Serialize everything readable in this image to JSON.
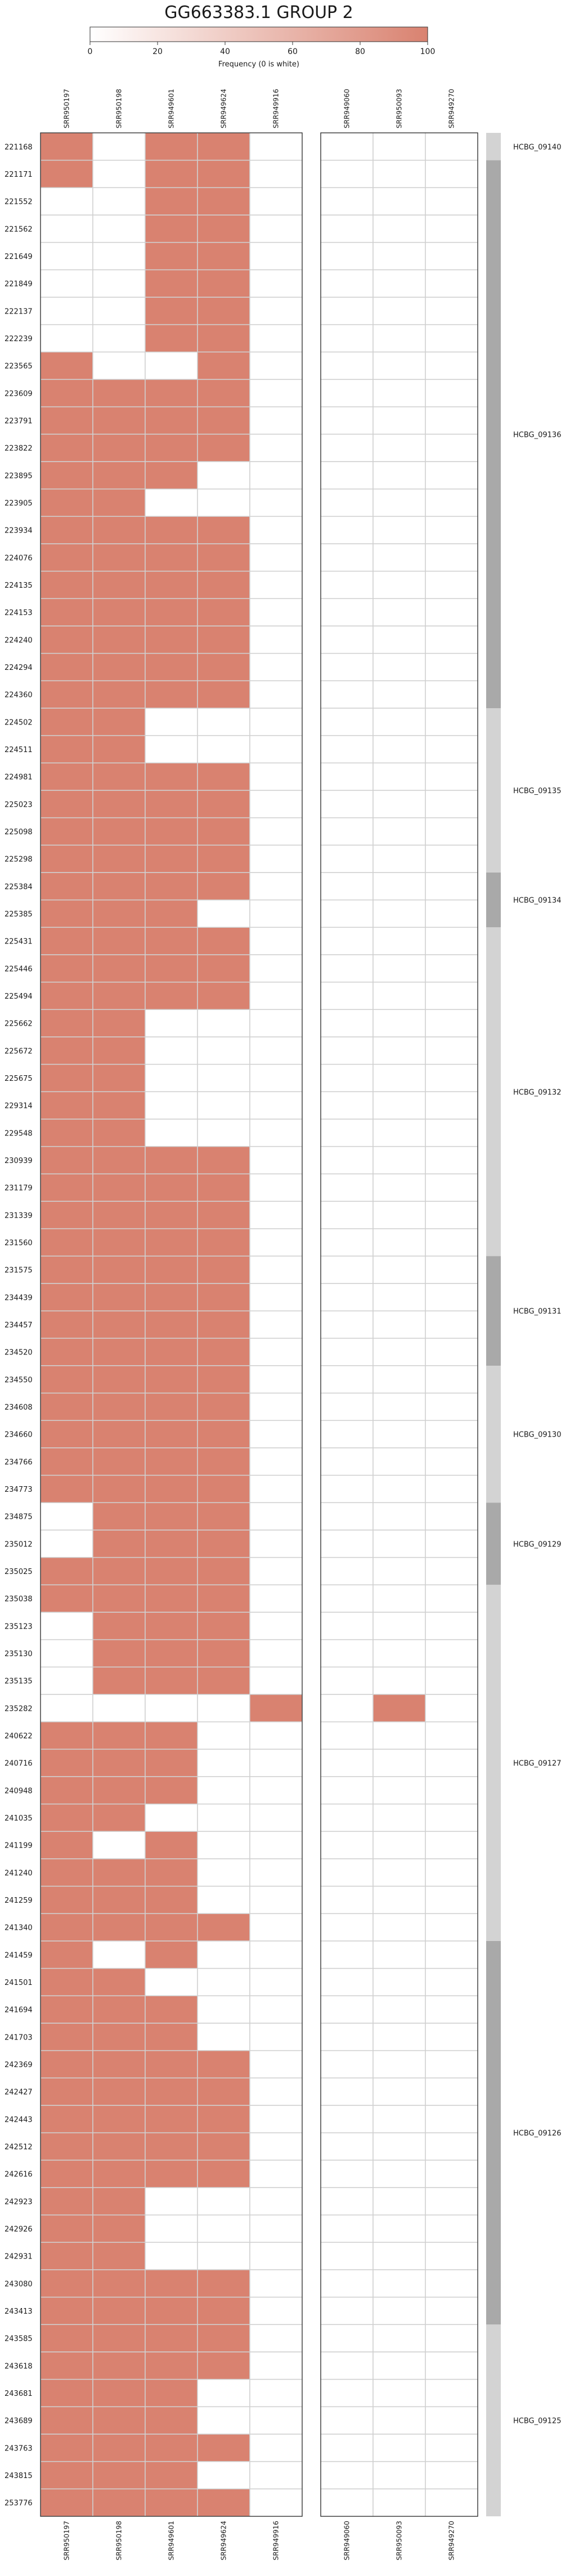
{
  "chart_data": {
    "type": "heatmap",
    "title": "GG663383.1 GROUP 2",
    "colorbar": {
      "label": "Frequency (0 is white)",
      "min": 0,
      "max": 100,
      "ticks": [
        0,
        20,
        40,
        60,
        80,
        100
      ],
      "color_low": "#ffffff",
      "color_high": "#d98270"
    },
    "cell_color": "#d98270",
    "panels": [
      {
        "columns": [
          "SRR950197",
          "SRR950198",
          "SRR949601",
          "SRR949624",
          "SRR949916"
        ]
      },
      {
        "columns": [
          "SRR949060",
          "SRR950093",
          "SRR949270"
        ]
      }
    ],
    "rows": [
      "221168",
      "221171",
      "221552",
      "221562",
      "221649",
      "221849",
      "222137",
      "222239",
      "223565",
      "223609",
      "223791",
      "223822",
      "223895",
      "223905",
      "223934",
      "224076",
      "224135",
      "224153",
      "224240",
      "224294",
      "224360",
      "224502",
      "224511",
      "224981",
      "225023",
      "225098",
      "225298",
      "225384",
      "225385",
      "225431",
      "225446",
      "225494",
      "225662",
      "225672",
      "225675",
      "229314",
      "229548",
      "230939",
      "231179",
      "231339",
      "231560",
      "231575",
      "234439",
      "234457",
      "234520",
      "234550",
      "234608",
      "234660",
      "234766",
      "234773",
      "234875",
      "235012",
      "235025",
      "235038",
      "235123",
      "235130",
      "235135",
      "235282",
      "240622",
      "240716",
      "240948",
      "241035",
      "241199",
      "241240",
      "241259",
      "241340",
      "241459",
      "241501",
      "241694",
      "241703",
      "242369",
      "242427",
      "242443",
      "242512",
      "242616",
      "242923",
      "242926",
      "242931",
      "243080",
      "243413",
      "243585",
      "243618",
      "243681",
      "243689",
      "243763",
      "243815",
      "253776"
    ],
    "values": [
      [
        100,
        0,
        100,
        100,
        0,
        0,
        0,
        0
      ],
      [
        100,
        0,
        100,
        100,
        0,
        0,
        0,
        0
      ],
      [
        0,
        0,
        100,
        100,
        0,
        0,
        0,
        0
      ],
      [
        0,
        0,
        100,
        100,
        0,
        0,
        0,
        0
      ],
      [
        0,
        0,
        100,
        100,
        0,
        0,
        0,
        0
      ],
      [
        0,
        0,
        100,
        100,
        0,
        0,
        0,
        0
      ],
      [
        0,
        0,
        100,
        100,
        0,
        0,
        0,
        0
      ],
      [
        0,
        0,
        100,
        100,
        0,
        0,
        0,
        0
      ],
      [
        100,
        0,
        0,
        100,
        0,
        0,
        0,
        0
      ],
      [
        100,
        100,
        100,
        100,
        0,
        0,
        0,
        0
      ],
      [
        100,
        100,
        100,
        100,
        0,
        0,
        0,
        0
      ],
      [
        100,
        100,
        100,
        100,
        0,
        0,
        0,
        0
      ],
      [
        100,
        100,
        100,
        0,
        0,
        0,
        0,
        0
      ],
      [
        100,
        100,
        0,
        0,
        0,
        0,
        0,
        0
      ],
      [
        100,
        100,
        100,
        100,
        0,
        0,
        0,
        0
      ],
      [
        100,
        100,
        100,
        100,
        0,
        0,
        0,
        0
      ],
      [
        100,
        100,
        100,
        100,
        0,
        0,
        0,
        0
      ],
      [
        100,
        100,
        100,
        100,
        0,
        0,
        0,
        0
      ],
      [
        100,
        100,
        100,
        100,
        0,
        0,
        0,
        0
      ],
      [
        100,
        100,
        100,
        100,
        0,
        0,
        0,
        0
      ],
      [
        100,
        100,
        100,
        100,
        0,
        0,
        0,
        0
      ],
      [
        100,
        100,
        0,
        0,
        0,
        0,
        0,
        0
      ],
      [
        100,
        100,
        0,
        0,
        0,
        0,
        0,
        0
      ],
      [
        100,
        100,
        100,
        100,
        0,
        0,
        0,
        0
      ],
      [
        100,
        100,
        100,
        100,
        0,
        0,
        0,
        0
      ],
      [
        100,
        100,
        100,
        100,
        0,
        0,
        0,
        0
      ],
      [
        100,
        100,
        100,
        100,
        0,
        0,
        0,
        0
      ],
      [
        100,
        100,
        100,
        100,
        0,
        0,
        0,
        0
      ],
      [
        100,
        100,
        100,
        0,
        0,
        0,
        0,
        0
      ],
      [
        100,
        100,
        100,
        100,
        0,
        0,
        0,
        0
      ],
      [
        100,
        100,
        100,
        100,
        0,
        0,
        0,
        0
      ],
      [
        100,
        100,
        100,
        100,
        0,
        0,
        0,
        0
      ],
      [
        100,
        100,
        0,
        0,
        0,
        0,
        0,
        0
      ],
      [
        100,
        100,
        0,
        0,
        0,
        0,
        0,
        0
      ],
      [
        100,
        100,
        0,
        0,
        0,
        0,
        0,
        0
      ],
      [
        100,
        100,
        0,
        0,
        0,
        0,
        0,
        0
      ],
      [
        100,
        100,
        0,
        0,
        0,
        0,
        0,
        0
      ],
      [
        100,
        100,
        100,
        100,
        0,
        0,
        0,
        0
      ],
      [
        100,
        100,
        100,
        100,
        0,
        0,
        0,
        0
      ],
      [
        100,
        100,
        100,
        100,
        0,
        0,
        0,
        0
      ],
      [
        100,
        100,
        100,
        100,
        0,
        0,
        0,
        0
      ],
      [
        100,
        100,
        100,
        100,
        0,
        0,
        0,
        0
      ],
      [
        100,
        100,
        100,
        100,
        0,
        0,
        0,
        0
      ],
      [
        100,
        100,
        100,
        100,
        0,
        0,
        0,
        0
      ],
      [
        100,
        100,
        100,
        100,
        0,
        0,
        0,
        0
      ],
      [
        100,
        100,
        100,
        100,
        0,
        0,
        0,
        0
      ],
      [
        100,
        100,
        100,
        100,
        0,
        0,
        0,
        0
      ],
      [
        100,
        100,
        100,
        100,
        0,
        0,
        0,
        0
      ],
      [
        100,
        100,
        100,
        100,
        0,
        0,
        0,
        0
      ],
      [
        100,
        100,
        100,
        100,
        0,
        0,
        0,
        0
      ],
      [
        0,
        100,
        100,
        100,
        0,
        0,
        0,
        0
      ],
      [
        0,
        100,
        100,
        100,
        0,
        0,
        0,
        0
      ],
      [
        100,
        100,
        100,
        100,
        0,
        0,
        0,
        0
      ],
      [
        100,
        100,
        100,
        100,
        0,
        0,
        0,
        0
      ],
      [
        0,
        100,
        100,
        100,
        0,
        0,
        0,
        0
      ],
      [
        0,
        100,
        100,
        100,
        0,
        0,
        0,
        0
      ],
      [
        0,
        100,
        100,
        100,
        0,
        0,
        0,
        0
      ],
      [
        0,
        0,
        0,
        0,
        100,
        0,
        100,
        0
      ],
      [
        100,
        100,
        100,
        0,
        0,
        0,
        0,
        0
      ],
      [
        100,
        100,
        100,
        0,
        0,
        0,
        0,
        0
      ],
      [
        100,
        100,
        100,
        0,
        0,
        0,
        0,
        0
      ],
      [
        100,
        100,
        0,
        0,
        0,
        0,
        0,
        0
      ],
      [
        100,
        0,
        100,
        0,
        0,
        0,
        0,
        0
      ],
      [
        100,
        100,
        100,
        0,
        0,
        0,
        0,
        0
      ],
      [
        100,
        100,
        100,
        0,
        0,
        0,
        0,
        0
      ],
      [
        100,
        100,
        100,
        100,
        0,
        0,
        0,
        0
      ],
      [
        100,
        0,
        100,
        0,
        0,
        0,
        0,
        0
      ],
      [
        100,
        100,
        0,
        0,
        0,
        0,
        0,
        0
      ],
      [
        100,
        100,
        100,
        0,
        0,
        0,
        0,
        0
      ],
      [
        100,
        100,
        100,
        0,
        0,
        0,
        0,
        0
      ],
      [
        100,
        100,
        100,
        100,
        0,
        0,
        0,
        0
      ],
      [
        100,
        100,
        100,
        100,
        0,
        0,
        0,
        0
      ],
      [
        100,
        100,
        100,
        100,
        0,
        0,
        0,
        0
      ],
      [
        100,
        100,
        100,
        100,
        0,
        0,
        0,
        0
      ],
      [
        100,
        100,
        100,
        100,
        0,
        0,
        0,
        0
      ],
      [
        100,
        100,
        0,
        0,
        0,
        0,
        0,
        0
      ],
      [
        100,
        100,
        0,
        0,
        0,
        0,
        0,
        0
      ],
      [
        100,
        100,
        0,
        0,
        0,
        0,
        0,
        0
      ],
      [
        100,
        100,
        100,
        100,
        0,
        0,
        0,
        0
      ],
      [
        100,
        100,
        100,
        100,
        0,
        0,
        0,
        0
      ],
      [
        100,
        100,
        100,
        100,
        0,
        0,
        0,
        0
      ],
      [
        100,
        100,
        100,
        100,
        0,
        0,
        0,
        0
      ],
      [
        100,
        100,
        100,
        0,
        0,
        0,
        0,
        0
      ],
      [
        100,
        100,
        100,
        0,
        0,
        0,
        0,
        0
      ],
      [
        100,
        100,
        100,
        100,
        0,
        0,
        0,
        0
      ],
      [
        100,
        100,
        100,
        0,
        0,
        0,
        0,
        0
      ],
      [
        100,
        100,
        100,
        100,
        0,
        0,
        0,
        0
      ]
    ],
    "groups": [
      {
        "label": "HCBG_09140",
        "first": 0,
        "last": 0,
        "shade": "#d3d3d3"
      },
      {
        "label": "HCBG_09136",
        "first": 1,
        "last": 20,
        "shade": "#a9a9a9"
      },
      {
        "label": "HCBG_09135",
        "first": 21,
        "last": 26,
        "shade": "#d3d3d3"
      },
      {
        "label": "HCBG_09134",
        "first": 27,
        "last": 28,
        "shade": "#a9a9a9"
      },
      {
        "label": "HCBG_09132",
        "first": 29,
        "last": 40,
        "shade": "#d3d3d3"
      },
      {
        "label": "HCBG_09131",
        "first": 41,
        "last": 44,
        "shade": "#a9a9a9"
      },
      {
        "label": "HCBG_09130",
        "first": 45,
        "last": 49,
        "shade": "#d3d3d3"
      },
      {
        "label": "HCBG_09129",
        "first": 50,
        "last": 52,
        "shade": "#a9a9a9"
      },
      {
        "label": "HCBG_09127",
        "first": 53,
        "last": 65,
        "shade": "#d3d3d3"
      },
      {
        "label": "HCBG_09126",
        "first": 66,
        "last": 79,
        "shade": "#a9a9a9"
      },
      {
        "label": "HCBG_09125",
        "first": 80,
        "last": 86,
        "shade": "#d3d3d3"
      }
    ]
  }
}
